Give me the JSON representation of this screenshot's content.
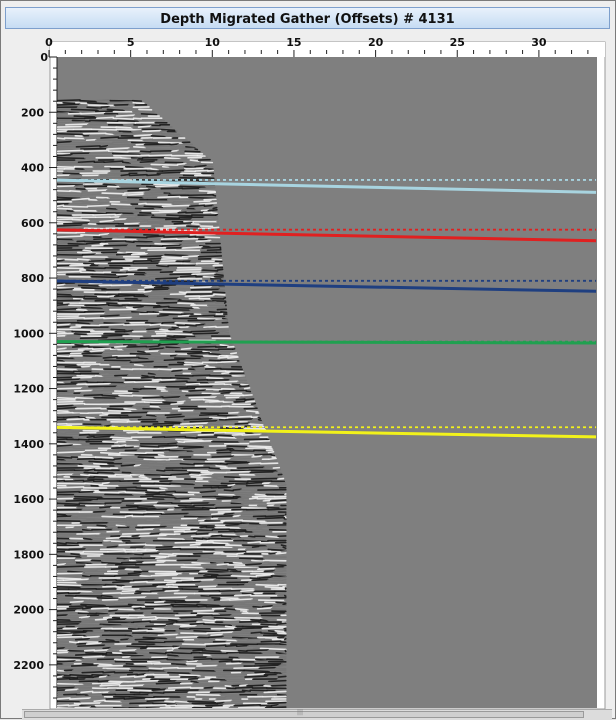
{
  "window": {
    "title": "Depth Migrated Gather (Offsets) # 4131"
  },
  "chart_data": {
    "type": "seismic-gather",
    "title": "Depth Migrated Gather (Offsets) # 4131",
    "xlabel": "",
    "ylabel": "",
    "xlim": [
      -0.7,
      34
    ],
    "ylim": [
      0,
      2370
    ],
    "x_ticks": [
      0,
      5,
      10,
      15,
      20,
      25,
      30
    ],
    "y_ticks": [
      200,
      400,
      600,
      800,
      1000,
      1200,
      1400,
      1600,
      1800,
      2000,
      2200
    ],
    "panel_color": "#7f7f7f",
    "data_extent": {
      "depth": [
        0,
        2370
      ],
      "max_offset_top": {
        "depth": 150,
        "offset": 5.5
      },
      "max_offset_shallow": {
        "depth": 380,
        "offset": 10
      },
      "max_offset_mid": {
        "depth": 1000,
        "offset": 11
      },
      "max_offset_deep": {
        "depth": 1550,
        "offset": 14.5
      }
    },
    "horizons": [
      {
        "color": "#a8d4e0",
        "dashed_depth": 445,
        "solid_start": [
          0,
          445
        ],
        "solid_end": [
          33.5,
          490
        ]
      },
      {
        "color": "#e02020",
        "dashed_depth": 625,
        "solid_start": [
          0,
          625
        ],
        "solid_end": [
          33.5,
          665
        ]
      },
      {
        "color": "#1f3f80",
        "dashed_depth": 810,
        "solid_start": [
          0,
          810
        ],
        "solid_end": [
          33.5,
          848
        ]
      },
      {
        "color": "#20a050",
        "dashed_depth": 1030,
        "solid_start": [
          0,
          1030
        ],
        "solid_end": [
          33.5,
          1035
        ]
      },
      {
        "color": "#f2f21a",
        "dashed_depth": 1340,
        "solid_start": [
          0,
          1340
        ],
        "solid_end": [
          33.5,
          1375
        ]
      }
    ]
  }
}
